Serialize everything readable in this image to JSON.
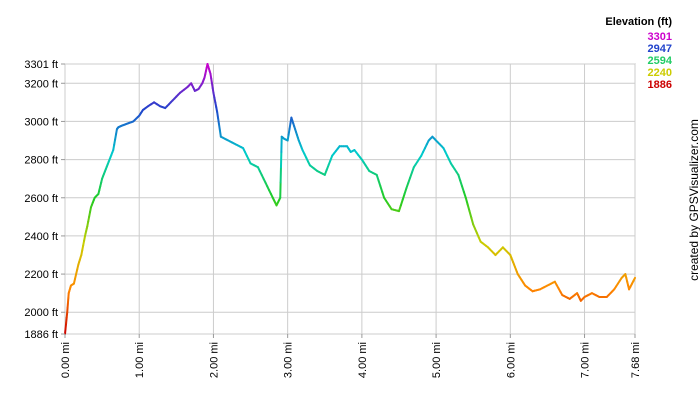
{
  "chart_data": {
    "type": "line",
    "x_unit": "mi",
    "y_unit": "ft",
    "xlim": [
      0,
      7.68
    ],
    "ylim": [
      1886,
      3301
    ],
    "y_ticks": [
      {
        "value": 3301,
        "label": "3301 ft"
      },
      {
        "value": 3200,
        "label": "3200 ft"
      },
      {
        "value": 3000,
        "label": "3000 ft"
      },
      {
        "value": 2800,
        "label": "2800 ft"
      },
      {
        "value": 2600,
        "label": "2600 ft"
      },
      {
        "value": 2400,
        "label": "2400 ft"
      },
      {
        "value": 2200,
        "label": "2200 ft"
      },
      {
        "value": 2000,
        "label": "2000 ft"
      },
      {
        "value": 1886,
        "label": "1886 ft"
      }
    ],
    "x_ticks": [
      {
        "value": 0,
        "label": "0.00 mi"
      },
      {
        "value": 1,
        "label": "1.00 mi"
      },
      {
        "value": 2,
        "label": "2.00 mi"
      },
      {
        "value": 3,
        "label": "3.00 mi"
      },
      {
        "value": 4,
        "label": "4.00 mi"
      },
      {
        "value": 5,
        "label": "5.00 mi"
      },
      {
        "value": 6,
        "label": "6.00 mi"
      },
      {
        "value": 7,
        "label": "7.00 mi"
      },
      {
        "value": 7.68,
        "label": "7.68 mi"
      }
    ],
    "grid": true,
    "legend": {
      "title": "Elevation (ft)",
      "placement": "top-right",
      "entries": [
        {
          "label": "3301",
          "color": "#cc00cc"
        },
        {
          "label": "2947",
          "color": "#2244cc"
        },
        {
          "label": "2594",
          "color": "#22cc66"
        },
        {
          "label": "2240",
          "color": "#cccc00"
        },
        {
          "label": "1886",
          "color": "#cc0000"
        }
      ]
    },
    "color_scale": {
      "min": 1886,
      "max": 3301,
      "stops": [
        "#cc0000",
        "#ff8800",
        "#cccc00",
        "#22cc22",
        "#00cccc",
        "#2244cc",
        "#cc00cc"
      ]
    },
    "x": [
      0,
      0.03,
      0.05,
      0.08,
      0.12,
      0.18,
      0.22,
      0.27,
      0.3,
      0.35,
      0.4,
      0.45,
      0.5,
      0.55,
      0.6,
      0.65,
      0.7,
      0.72,
      0.78,
      0.85,
      0.92,
      1.0,
      1.05,
      1.12,
      1.2,
      1.28,
      1.35,
      1.45,
      1.55,
      1.65,
      1.7,
      1.75,
      1.8,
      1.85,
      1.88,
      1.92,
      1.96,
      2.0,
      2.05,
      2.1,
      2.2,
      2.3,
      2.4,
      2.5,
      2.6,
      2.7,
      2.8,
      2.85,
      2.9,
      2.92,
      2.95,
      3.0,
      3.05,
      3.1,
      3.15,
      3.2,
      3.3,
      3.4,
      3.5,
      3.6,
      3.7,
      3.8,
      3.85,
      3.9,
      4.0,
      4.1,
      4.2,
      4.3,
      4.4,
      4.5,
      4.6,
      4.7,
      4.8,
      4.9,
      4.95,
      5.0,
      5.1,
      5.2,
      5.3,
      5.4,
      5.5,
      5.6,
      5.7,
      5.8,
      5.9,
      6.0,
      6.05,
      6.1,
      6.2,
      6.3,
      6.4,
      6.5,
      6.6,
      6.7,
      6.8,
      6.9,
      6.95,
      7.0,
      7.05,
      7.1,
      7.2,
      7.3,
      7.4,
      7.5,
      7.55,
      7.6,
      7.68
    ],
    "y": [
      1886,
      2000,
      2100,
      2140,
      2150,
      2250,
      2300,
      2400,
      2450,
      2550,
      2600,
      2620,
      2700,
      2750,
      2800,
      2850,
      2960,
      2970,
      2980,
      2990,
      3000,
      3030,
      3060,
      3080,
      3100,
      3080,
      3070,
      3110,
      3150,
      3180,
      3200,
      3160,
      3170,
      3200,
      3230,
      3301,
      3250,
      3150,
      3050,
      2920,
      2900,
      2880,
      2860,
      2780,
      2760,
      2680,
      2600,
      2560,
      2600,
      2920,
      2910,
      2900,
      3020,
      2960,
      2900,
      2850,
      2770,
      2740,
      2720,
      2820,
      2870,
      2870,
      2840,
      2850,
      2800,
      2740,
      2720,
      2600,
      2540,
      2530,
      2650,
      2760,
      2820,
      2900,
      2920,
      2900,
      2860,
      2780,
      2720,
      2600,
      2460,
      2370,
      2340,
      2300,
      2340,
      2300,
      2250,
      2200,
      2140,
      2110,
      2120,
      2140,
      2160,
      2090,
      2070,
      2100,
      2060,
      2080,
      2090,
      2100,
      2080,
      2080,
      2120,
      2180,
      2200,
      2120,
      2180
    ]
  },
  "credit": "created by GPSVisualizer.com"
}
